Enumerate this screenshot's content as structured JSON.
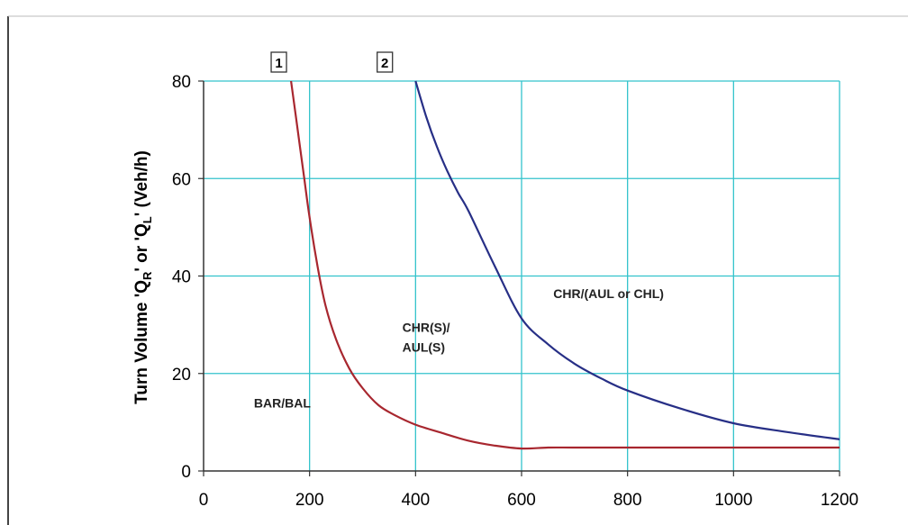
{
  "chart_data": {
    "type": "line",
    "title": "",
    "xlabel": "",
    "ylabel_parts": [
      "Turn Volume 'Q",
      "R",
      "' or 'Q",
      "L",
      "' (Veh/h)"
    ],
    "xlim": [
      0,
      1200
    ],
    "ylim": [
      0,
      80
    ],
    "x_ticks": [
      0,
      200,
      400,
      600,
      800,
      1000,
      1200
    ],
    "y_ticks": [
      0,
      20,
      40,
      60,
      80
    ],
    "grid": true,
    "grid_color": "#33c3cc",
    "series": [
      {
        "color": "#a8272f",
        "x": [
          165,
          175,
          190,
          200,
          215,
          230,
          250,
          275,
          300,
          330,
          360,
          400,
          450,
          500,
          550,
          600,
          650,
          700,
          800,
          900,
          1000,
          1100,
          1200
        ],
        "y": [
          80,
          72,
          60,
          52,
          42,
          34,
          27,
          21,
          17,
          13.5,
          11.5,
          9.5,
          7.8,
          6.2,
          5.2,
          4.6,
          4.8,
          4.8,
          4.8,
          4.8,
          4.8,
          4.8,
          4.8
        ]
      },
      {
        "color": "#272f86",
        "x": [
          400,
          420,
          440,
          460,
          480,
          500,
          550,
          600,
          650,
          700,
          750,
          800,
          900,
          1000,
          1100,
          1200
        ],
        "y": [
          80,
          72.7,
          66.6,
          61.5,
          57.1,
          53.3,
          41.9,
          31.3,
          26,
          22,
          19,
          16.5,
          12.8,
          9.8,
          8,
          6.5
        ]
      }
    ],
    "annotations": [
      {
        "text": "BAR/BAL",
        "x": 95,
        "y": 13
      },
      {
        "text": "CHR(S)/",
        "x": 375,
        "y": 28.5
      },
      {
        "text": "AUL(S)",
        "x": 375,
        "y": 24.5
      },
      {
        "text": "CHR/(AUL or CHL)",
        "x": 660,
        "y": 35.5
      }
    ],
    "curve_markers": [
      {
        "text": "1",
        "x": 142
      },
      {
        "text": "2",
        "x": 342
      }
    ]
  }
}
